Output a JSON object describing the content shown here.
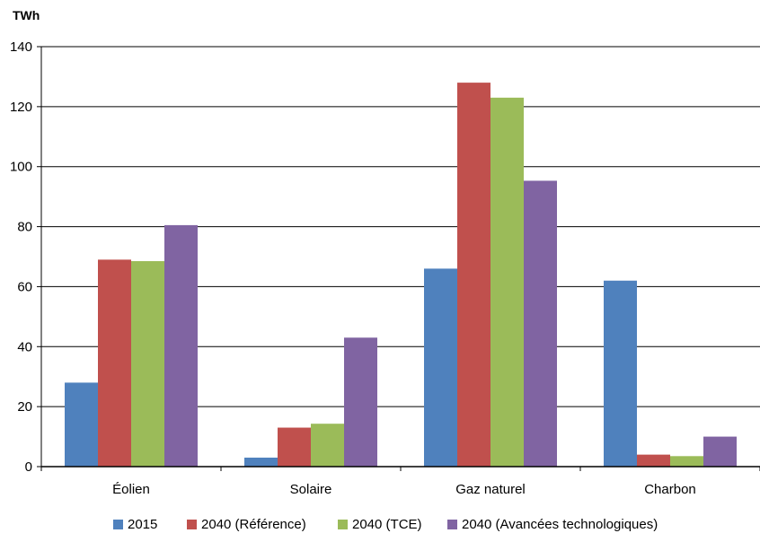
{
  "chart_data": {
    "type": "bar",
    "unit_label": "TWh",
    "categories": [
      "Éolien",
      "Solaire",
      "Gaz naturel",
      "Charbon"
    ],
    "series": [
      {
        "name": "2015",
        "color": "#4f81bd",
        "values": [
          28,
          3,
          66,
          62
        ]
      },
      {
        "name": "2040 (Référence)",
        "color": "#c0504d",
        "values": [
          69,
          13,
          128,
          4
        ]
      },
      {
        "name": "2040 (TCE)",
        "color": "#9bbb59",
        "values": [
          68.5,
          14.3,
          123,
          3.5
        ]
      },
      {
        "name": "2040 (Avancées technologiques)",
        "color": "#8064a2",
        "values": [
          80.5,
          43,
          95.3,
          10
        ]
      }
    ],
    "ylim": [
      0,
      140
    ],
    "yticks": [
      0,
      20,
      40,
      60,
      80,
      100,
      120,
      140
    ],
    "grid": true,
    "legend_position": "bottom"
  }
}
